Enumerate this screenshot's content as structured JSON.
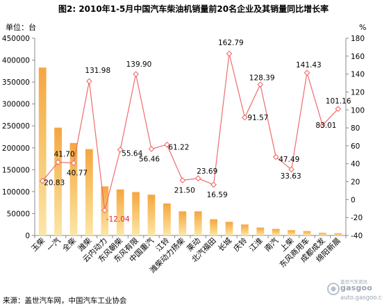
{
  "chart_data": {
    "type": "bar+line",
    "title": "图2:  2010年1-5月中国汽车柴油机销量前20名企业及其销量同比增长率",
    "left_unit_label": "单位：台",
    "right_unit_label": "%",
    "categories": [
      "玉柴",
      "一汽",
      "全柴",
      "潍柴",
      "云内动力",
      "东风朝柴",
      "东风有限",
      "中国重汽",
      "江铃",
      "潍柴动力扬柴",
      "莱动",
      "北汽福田",
      "长城",
      "庆铃",
      "江淮",
      "南汽",
      "上柴",
      "东风商用车",
      "成都成发",
      "绵阳新晨"
    ],
    "series": [
      {
        "kind": "bar",
        "axis": "left",
        "values": [
          383000,
          246000,
          211000,
          197000,
          112000,
          105000,
          99000,
          93000,
          73000,
          55000,
          55000,
          37000,
          31000,
          25000,
          18000,
          15000,
          12000,
          10000,
          6000,
          5000
        ]
      },
      {
        "kind": "line",
        "axis": "right",
        "values": [
          20.83,
          41.7,
          40.77,
          131.98,
          -12.04,
          55.64,
          139.9,
          56.46,
          61.22,
          21.5,
          23.69,
          16.59,
          162.79,
          91.57,
          128.39,
          47.49,
          33.63,
          141.43,
          83.01,
          101.16
        ],
        "labels": [
          "20.83",
          "41.70",
          "40.77",
          "131.98",
          "-12.04",
          "55.64",
          "139.90",
          "56.46",
          "61.22",
          "21.50",
          "23.69",
          "16.59",
          "162.79",
          "91.57",
          "128.39",
          "47.49",
          "33.63",
          "141.43",
          "83.01",
          "101.16"
        ]
      }
    ],
    "ylim_left": [
      0,
      450000
    ],
    "yticks_left": [
      "0",
      "50000",
      "100000",
      "150000",
      "200000",
      "250000",
      "300000",
      "350000",
      "400000",
      "450000"
    ],
    "ylim_right": [
      -40,
      180
    ],
    "yticks_right": [
      "-40",
      "-20",
      "0",
      "20",
      "40",
      "60",
      "80",
      "100",
      "120",
      "140",
      "160",
      "180"
    ],
    "grid": false,
    "colors": {
      "bar_top": "#F6A540",
      "bar_mid": "#F8C46A",
      "bar_bottom": "#FCE6A8",
      "line": "#EF6B6B",
      "marker_fill": "#FFFFFF",
      "negative_label": "#E8232A"
    }
  },
  "footer": {
    "source": "来源：盖世汽车网，中国汽车工业协会",
    "watermark_cn": "盖世汽车资讯",
    "watermark_brand": "gasgoo",
    "watermark_url": "auto.gasgoo.com"
  }
}
